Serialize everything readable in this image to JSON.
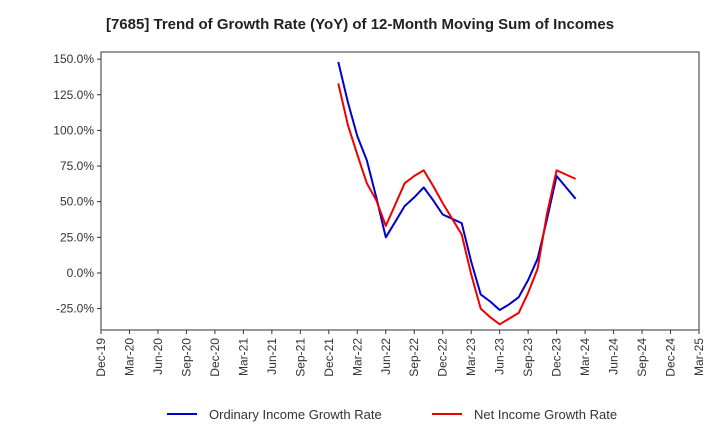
{
  "chart_data": {
    "type": "line",
    "title": "[7685]  Trend of Growth Rate (YoY) of 12-Month Moving Sum of Incomes",
    "xlabel": "",
    "ylabel": "",
    "x_tick_labels": [
      "Dec-19",
      "Mar-20",
      "Jun-20",
      "Sep-20",
      "Dec-20",
      "Mar-21",
      "Jun-21",
      "Sep-21",
      "Dec-21",
      "Mar-22",
      "Jun-22",
      "Sep-22",
      "Dec-22",
      "Mar-23",
      "Jun-23",
      "Sep-23",
      "Dec-23",
      "Mar-24",
      "Jun-24",
      "Sep-24",
      "Dec-24",
      "Mar-25"
    ],
    "y_tick_labels": [
      "150.0%",
      "125.0%",
      "100.0%",
      "75.0%",
      "50.0%",
      "25.0%",
      "0.0%",
      "-25.0%"
    ],
    "y_ticks": [
      150,
      125,
      100,
      75,
      50,
      25,
      0,
      -25
    ],
    "ylim": [
      -40,
      155
    ],
    "grid": true,
    "legend_position": "bottom",
    "series": [
      {
        "name": "Ordinary Income Growth Rate",
        "color": "#0000cc",
        "points": [
          [
            "2022-01",
            148
          ],
          [
            "2022-02",
            120
          ],
          [
            "2022-03",
            96
          ],
          [
            "2022-04",
            79
          ],
          [
            "2022-05",
            53
          ],
          [
            "2022-06",
            25
          ],
          [
            "2022-07",
            36
          ],
          [
            "2022-08",
            47
          ],
          [
            "2022-09",
            53
          ],
          [
            "2022-10",
            60
          ],
          [
            "2022-11",
            51
          ],
          [
            "2022-12",
            41
          ],
          [
            "2023-01",
            38
          ],
          [
            "2023-02",
            35
          ],
          [
            "2023-03",
            8
          ],
          [
            "2023-04",
            -15
          ],
          [
            "2023-05",
            -20
          ],
          [
            "2023-06",
            -26
          ],
          [
            "2023-07",
            -22
          ],
          [
            "2023-08",
            -17
          ],
          [
            "2023-09",
            -5
          ],
          [
            "2023-10",
            10
          ],
          [
            "2023-11",
            38
          ],
          [
            "2023-12",
            68
          ],
          [
            "2024-01",
            60
          ],
          [
            "2024-02",
            52
          ]
        ]
      },
      {
        "name": "Net Income Growth Rate",
        "color": "#ee0000",
        "points": [
          [
            "2022-01",
            133
          ],
          [
            "2022-02",
            104
          ],
          [
            "2022-03",
            83
          ],
          [
            "2022-04",
            63
          ],
          [
            "2022-05",
            51
          ],
          [
            "2022-06",
            33
          ],
          [
            "2022-07",
            48
          ],
          [
            "2022-08",
            63
          ],
          [
            "2022-09",
            68
          ],
          [
            "2022-10",
            72
          ],
          [
            "2022-11",
            61
          ],
          [
            "2022-12",
            49
          ],
          [
            "2023-01",
            38
          ],
          [
            "2023-02",
            27
          ],
          [
            "2023-03",
            -1
          ],
          [
            "2023-04",
            -25
          ],
          [
            "2023-05",
            -31
          ],
          [
            "2023-06",
            -36
          ],
          [
            "2023-07",
            -32
          ],
          [
            "2023-08",
            -28
          ],
          [
            "2023-09",
            -14
          ],
          [
            "2023-10",
            3
          ],
          [
            "2023-11",
            42
          ],
          [
            "2023-12",
            72
          ],
          [
            "2024-01",
            69
          ],
          [
            "2024-02",
            66
          ]
        ]
      }
    ]
  }
}
